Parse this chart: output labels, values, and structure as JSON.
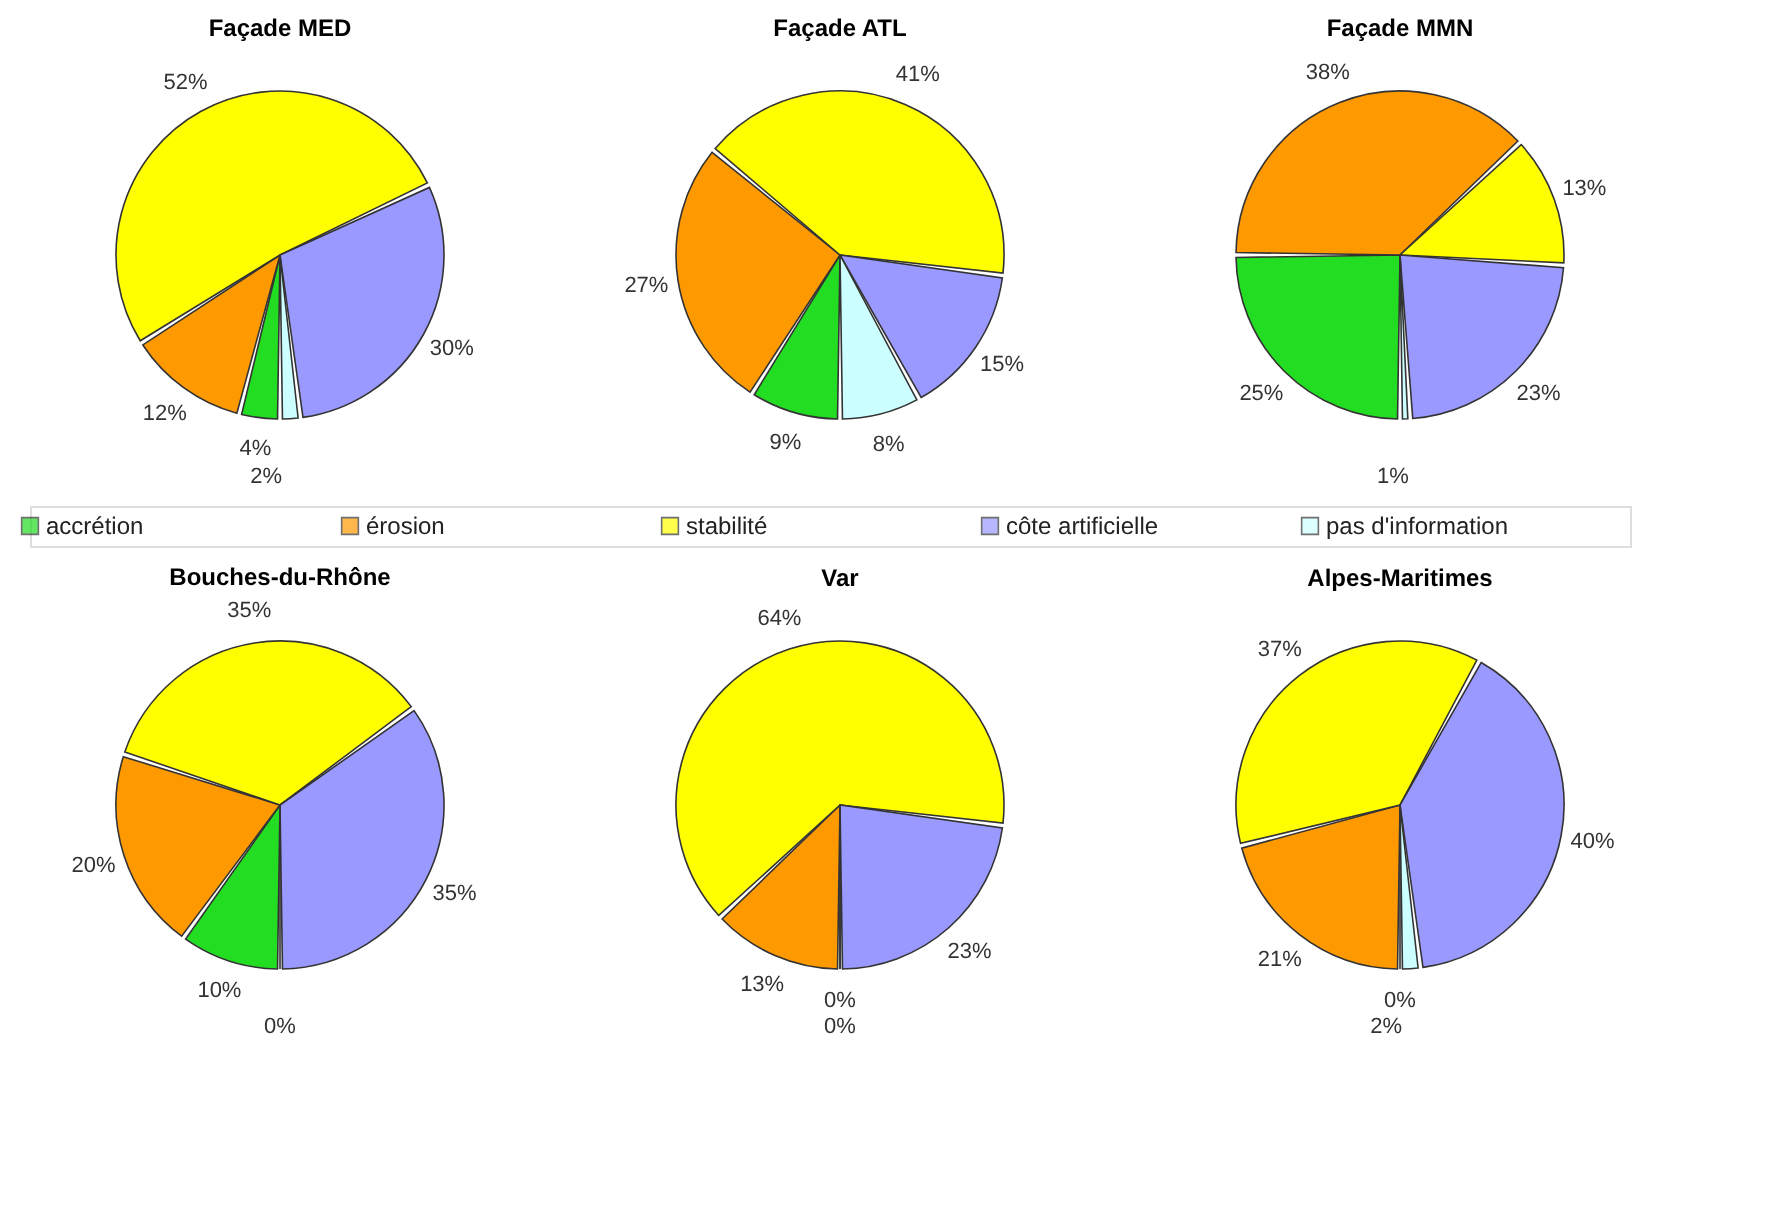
{
  "chart_data": [
    {
      "type": "pie",
      "title": "Façade MED",
      "legend": "bottom",
      "categories": [
        "accrétion",
        "érosion",
        "stabilité",
        "côte artificielle",
        "pas d'information"
      ],
      "colors": [
        "#22dd22",
        "#ff9900",
        "#ffff00",
        "#9999ff",
        "#ccffff"
      ],
      "values": [
        4,
        12,
        52,
        30,
        2
      ],
      "value_labels": [
        "4%",
        "12%",
        "52%",
        "30%",
        "2%"
      ]
    },
    {
      "type": "pie",
      "title": "Façade ATL",
      "categories": [
        null,
        null,
        null,
        null,
        null
      ],
      "colors": [
        "#22dd22",
        "#ff9900",
        "#ffff00",
        "#9999ff",
        "#ccffff"
      ],
      "values": [
        9,
        27,
        41,
        15,
        8
      ],
      "value_labels": [
        "9%",
        "27%",
        "41%",
        "15%",
        "8%"
      ]
    },
    {
      "type": "pie",
      "title": "Façade MMN",
      "categories": [
        null,
        null,
        null,
        null,
        null
      ],
      "colors": [
        "#22dd22",
        "#ff9900",
        "#ffff00",
        "#9999ff",
        "#ccffff"
      ],
      "values": [
        25,
        38,
        13,
        23,
        1
      ],
      "value_labels": [
        "25%",
        "38%",
        "13%",
        "23%",
        "1%"
      ]
    },
    {
      "type": "pie",
      "title": "Bouches-du-Rhône",
      "categories": [
        null,
        null,
        null,
        null,
        null
      ],
      "colors": [
        "#22dd22",
        "#ff9900",
        "#ffff00",
        "#9999ff",
        "#ccffff"
      ],
      "values": [
        10,
        20,
        35,
        35,
        0
      ],
      "value_labels": [
        "10%",
        "20%",
        "35%",
        "35%",
        "0%"
      ]
    },
    {
      "type": "pie",
      "title": "Var",
      "categories": [
        null,
        null,
        null,
        null,
        null
      ],
      "colors": [
        "#22dd22",
        "#ff9900",
        "#ffff00",
        "#9999ff",
        "#ccffff"
      ],
      "values": [
        0,
        13,
        64,
        23,
        0
      ],
      "value_labels": [
        "0%",
        "13%",
        "64%",
        "23%",
        "0%"
      ]
    },
    {
      "type": "pie",
      "title": "Alpes-Maritimes",
      "categories": [
        null,
        null,
        null,
        null,
        null
      ],
      "colors": [
        "#22dd22",
        "#ff9900",
        "#ffff00",
        "#9999ff",
        "#ccffff"
      ],
      "values": [
        0,
        21,
        37,
        40,
        2
      ],
      "value_labels": [
        "0%",
        "21%",
        "37%",
        "40%",
        "2%"
      ]
    }
  ]
}
